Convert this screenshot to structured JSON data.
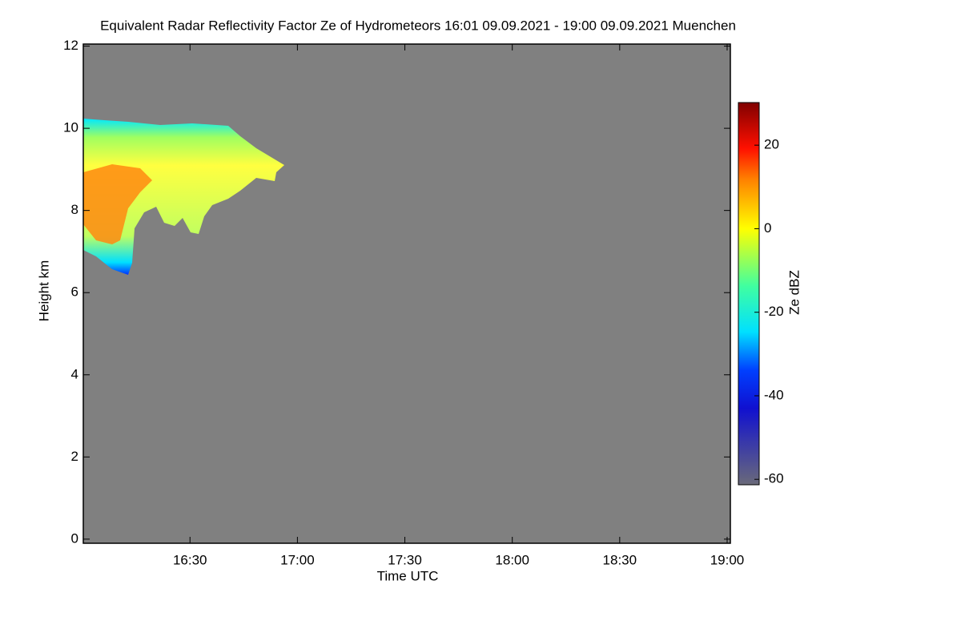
{
  "chart_data": {
    "type": "heatmap",
    "title": "Equivalent Radar Reflectivity Factor Ze of Hydrometeors   16:01 09.09.2021 - 19:00 09.09.2021 Muenchen",
    "x_label": "Time UTC",
    "y_label": "Height km",
    "xlim": [
      960.2,
      1140.9
    ],
    "xticks": [
      {
        "value": 990,
        "label": "16:30"
      },
      {
        "value": 1020,
        "label": "17:00"
      },
      {
        "value": 1050,
        "label": "17:30"
      },
      {
        "value": 1080,
        "label": "18:00"
      },
      {
        "value": 1110,
        "label": "18:30"
      },
      {
        "value": 1140,
        "label": "19:00"
      }
    ],
    "ylim": [
      -0.1,
      12.05
    ],
    "yticks": [
      0,
      2,
      4,
      6,
      8,
      10,
      12
    ],
    "colorbar": {
      "label": "Ze dBZ",
      "clim": [
        -61.3,
        30.2
      ],
      "ticks": [
        -60,
        -40,
        -20,
        0,
        20
      ]
    },
    "background_color": "#808080"
  }
}
